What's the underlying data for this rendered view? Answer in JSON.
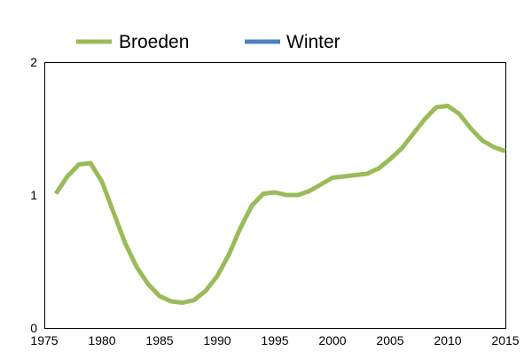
{
  "chart_data": {
    "type": "line",
    "title": "",
    "xlabel": "",
    "ylabel": "",
    "xlim": [
      1975,
      2015
    ],
    "ylim": [
      0,
      2
    ],
    "xticks": [
      1975,
      1980,
      1985,
      1990,
      1995,
      2000,
      2005,
      2010,
      2015
    ],
    "yticks": [
      0,
      1,
      2
    ],
    "grid": false,
    "legend_position": "top",
    "series": [
      {
        "name": "Broeden",
        "color": "#9BBB59",
        "x": [
          1976,
          1977,
          1978,
          1979,
          1980,
          1981,
          1982,
          1983,
          1984,
          1985,
          1986,
          1987,
          1988,
          1989,
          1990,
          1991,
          1992,
          1993,
          1994,
          1995,
          1996,
          1997,
          1998,
          1999,
          2000,
          2001,
          2002,
          2003,
          2004,
          2005,
          2006,
          2007,
          2008,
          2009,
          2010,
          2011,
          2012,
          2013,
          2014,
          2015
        ],
        "values": [
          1.01,
          1.14,
          1.23,
          1.24,
          1.1,
          0.87,
          0.64,
          0.46,
          0.33,
          0.24,
          0.2,
          0.19,
          0.21,
          0.28,
          0.39,
          0.55,
          0.75,
          0.92,
          1.01,
          1.02,
          1.0,
          1.0,
          1.03,
          1.08,
          1.13,
          1.14,
          1.15,
          1.16,
          1.2,
          1.27,
          1.35,
          1.46,
          1.57,
          1.66,
          1.67,
          1.61,
          1.5,
          1.41,
          1.36,
          1.33
        ]
      },
      {
        "name": "Winter",
        "color": "#4F81BD",
        "x": [],
        "values": []
      }
    ]
  }
}
